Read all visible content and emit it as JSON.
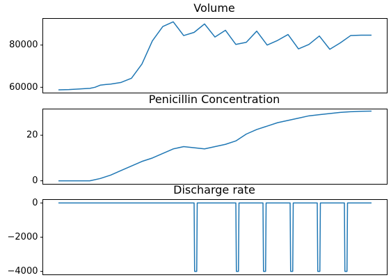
{
  "colors": {
    "series": "#1f77b4"
  },
  "chart_data": [
    {
      "type": "line",
      "title": "Volume",
      "ylim": [
        57300,
        92600
      ],
      "yticks": [
        {
          "value": 60000,
          "label": "60000"
        },
        {
          "value": 80000,
          "label": "80000"
        }
      ],
      "grid": false,
      "x": [
        0,
        1,
        2,
        3,
        3.5,
        4,
        4.5,
        5,
        6,
        7,
        8,
        9,
        10,
        11,
        12,
        13,
        14,
        15,
        16,
        17,
        18,
        19,
        20,
        21,
        22,
        23,
        24,
        25,
        26,
        27,
        28,
        29,
        30
      ],
      "values": [
        58800,
        58900,
        59200,
        59500,
        60000,
        61000,
        61300,
        61500,
        62300,
        64300,
        71000,
        82000,
        88800,
        91000,
        84500,
        86000,
        90000,
        83800,
        87000,
        80300,
        81300,
        86600,
        80000,
        82200,
        85000,
        78200,
        80300,
        84300,
        78000,
        81000,
        84500,
        84700,
        84700
      ]
    },
    {
      "type": "line",
      "title": "Penicillin Concentration",
      "ylim": [
        -1.5,
        31.5
      ],
      "yticks": [
        {
          "value": 0,
          "label": "0"
        },
        {
          "value": 20,
          "label": "20"
        }
      ],
      "grid": false,
      "x": [
        0,
        1,
        2,
        3,
        4,
        5,
        6,
        7,
        8,
        9,
        10,
        11,
        12,
        13,
        14,
        15,
        16,
        17,
        18,
        19,
        20,
        21,
        22,
        23,
        24,
        25,
        26,
        27,
        28,
        29,
        30
      ],
      "values": [
        0,
        0,
        0,
        0,
        1,
        2.5,
        4.5,
        6.5,
        8.5,
        10,
        12,
        14,
        15,
        14.5,
        14,
        15,
        16,
        17.5,
        20.5,
        22.5,
        24,
        25.5,
        26.5,
        27.5,
        28.5,
        29,
        29.5,
        30,
        30.3,
        30.5,
        30.6
      ]
    },
    {
      "type": "line",
      "title": "Discharge rate",
      "ylim": [
        -4200,
        200
      ],
      "yticks": [
        {
          "value": 0,
          "label": "0"
        },
        {
          "value": -2000,
          "label": "−2000"
        },
        {
          "value": -4000,
          "label": "−4000"
        }
      ],
      "grid": false,
      "x": [
        0,
        13,
        13.05,
        13.25,
        13.3,
        17,
        17.05,
        17.25,
        17.3,
        19.6,
        19.65,
        19.85,
        19.9,
        22.2,
        22.25,
        22.45,
        22.5,
        24.8,
        24.85,
        25.05,
        25.1,
        27.4,
        27.45,
        27.65,
        27.7,
        30
      ],
      "values": [
        0,
        0,
        -4000,
        -4000,
        0,
        0,
        -4000,
        -4000,
        0,
        0,
        -4000,
        -4000,
        0,
        0,
        -4000,
        -4000,
        0,
        0,
        -4000,
        -4000,
        0,
        0,
        -4000,
        -4000,
        0,
        0
      ]
    }
  ]
}
